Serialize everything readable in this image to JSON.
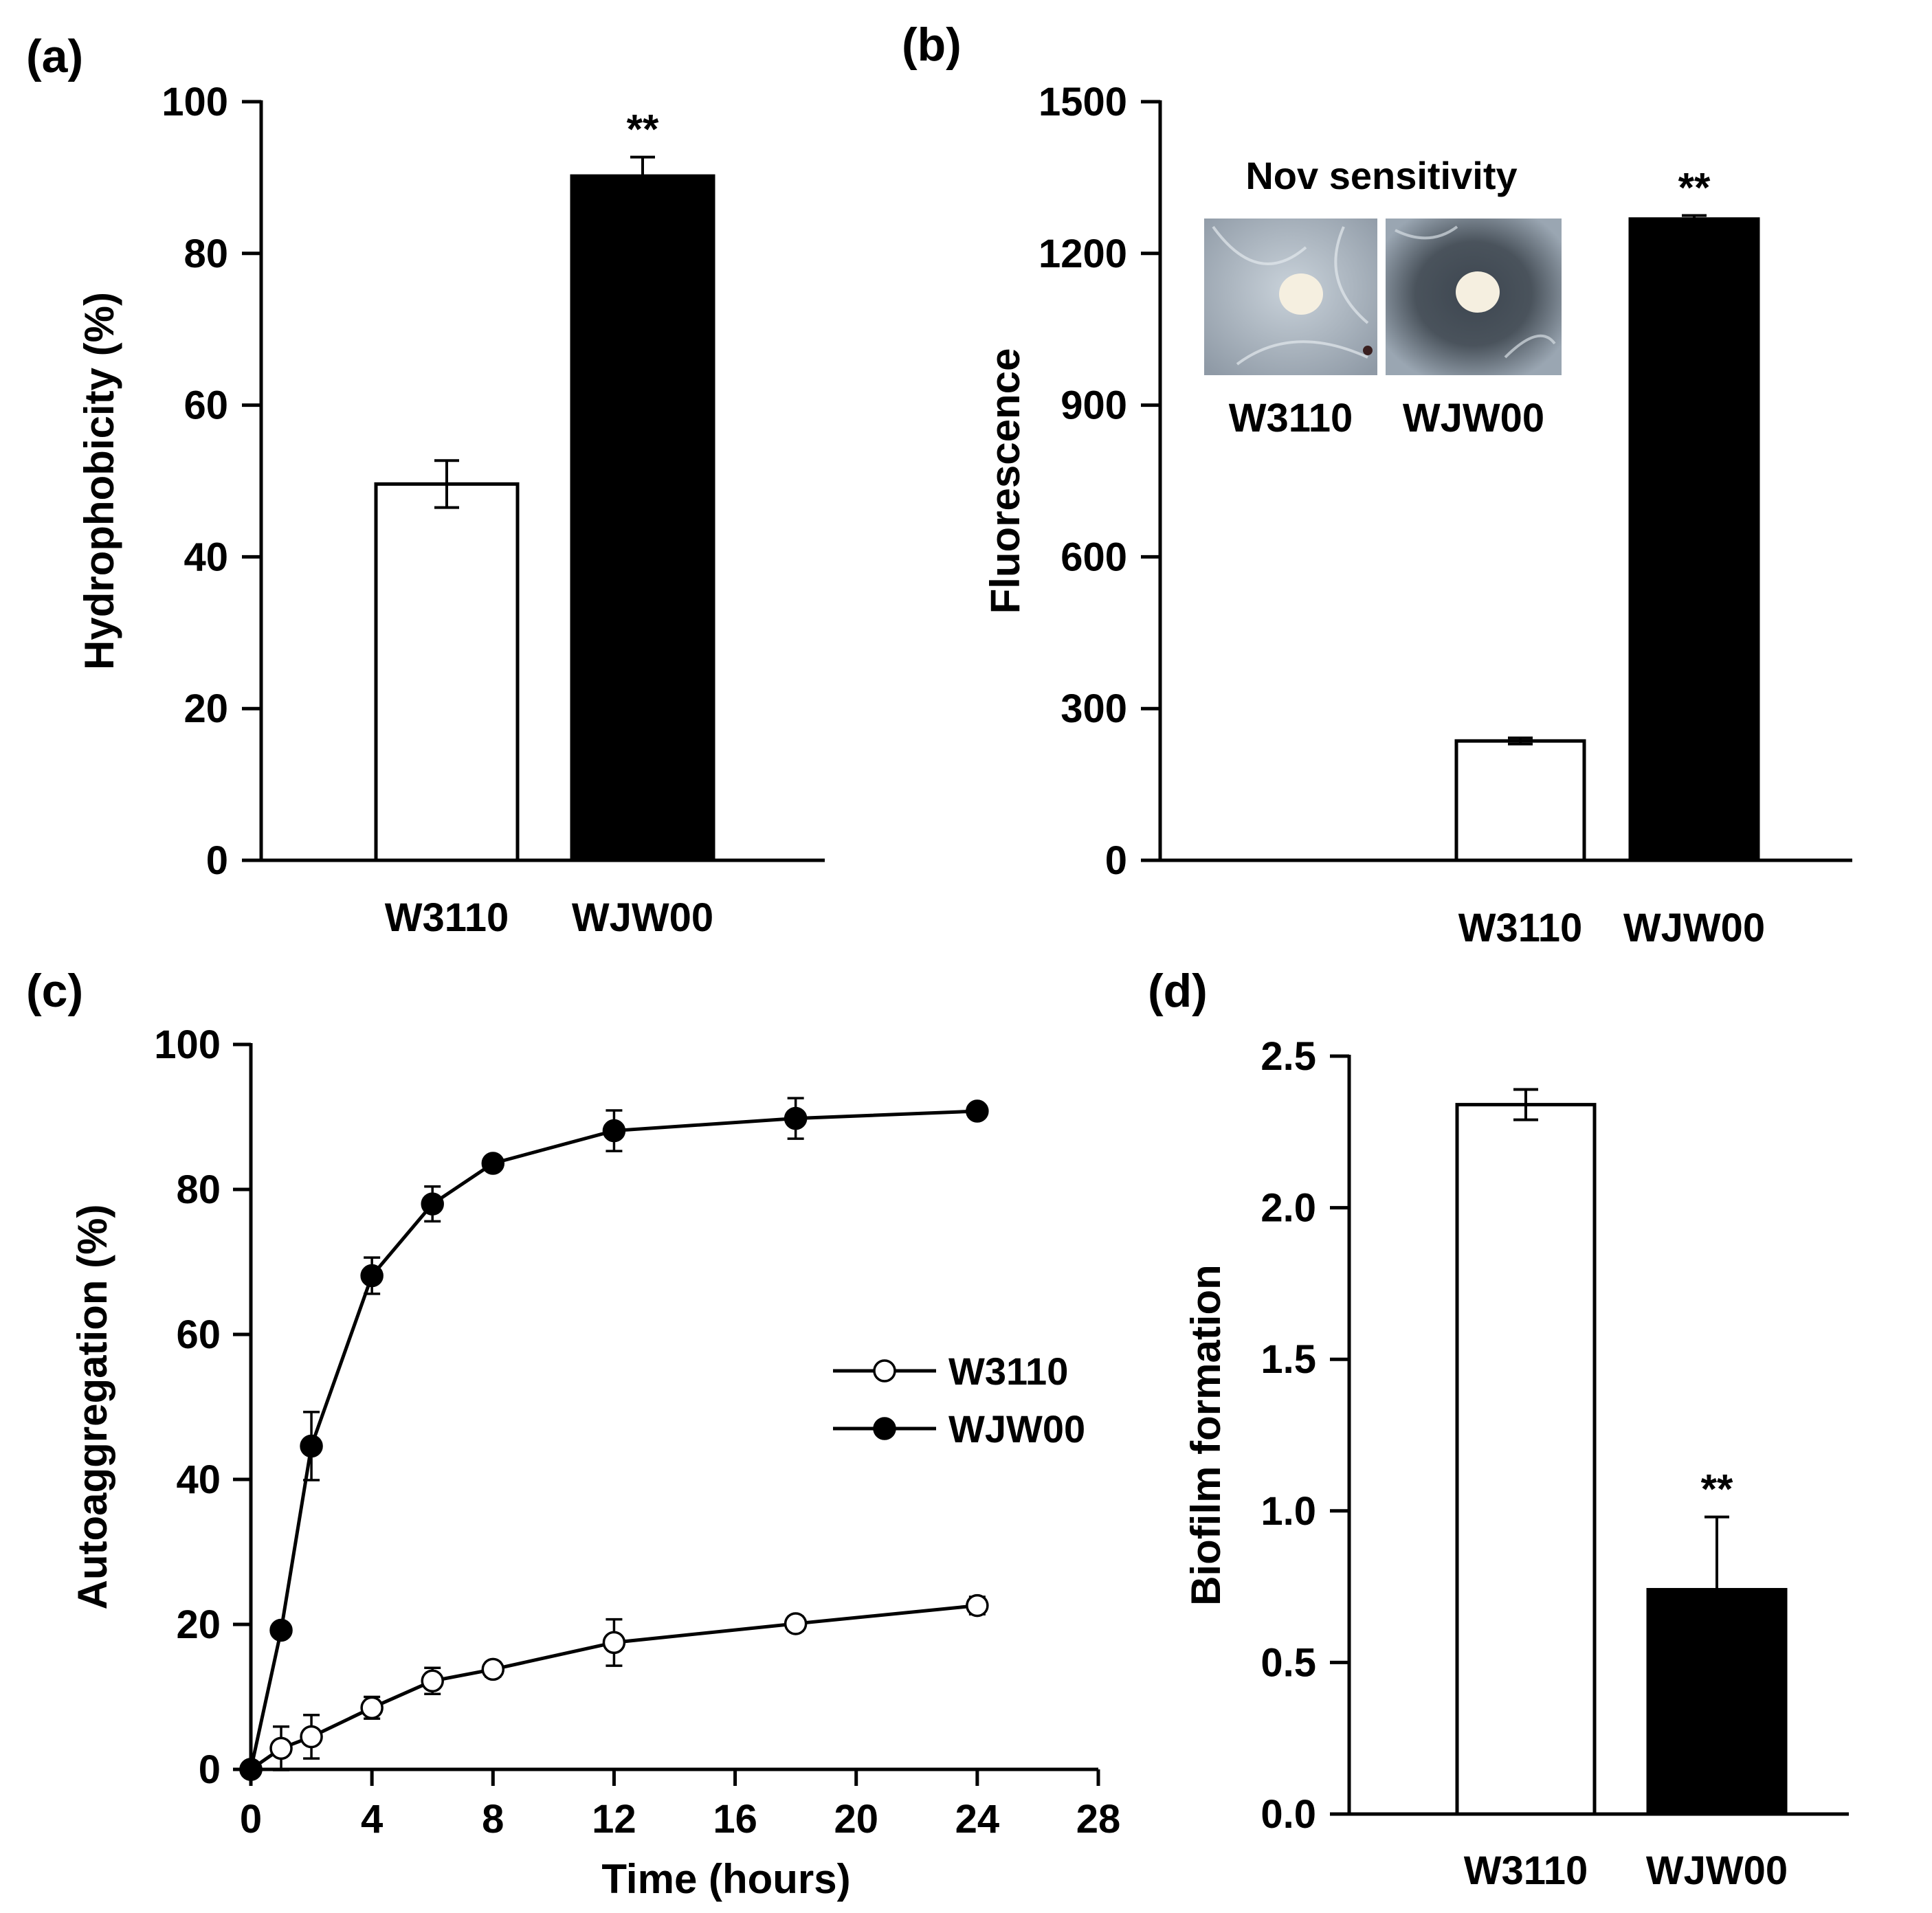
{
  "chart_data": [
    {
      "panel": "(a)",
      "type": "bar",
      "categories": [
        "W3110",
        "WJW00"
      ],
      "values": [
        49.6,
        90.2
      ],
      "errors": [
        3.1,
        2.5
      ],
      "colors": [
        "#ffffff",
        "#000000"
      ],
      "significance": [
        "",
        "**"
      ],
      "ylabel": "Hydrophobicity (%)",
      "ylim": [
        0,
        100
      ],
      "yticks": [
        "0",
        "20",
        "40",
        "60",
        "80",
        "100"
      ]
    },
    {
      "panel": "(b)",
      "type": "bar",
      "categories": [
        "W3110",
        "WJW00"
      ],
      "values": [
        236,
        1268
      ],
      "errors": [
        6,
        7
      ],
      "colors": [
        "#ffffff",
        "#000000"
      ],
      "significance": [
        "",
        "**"
      ],
      "ylabel": "Fluorescence",
      "ylim": [
        0,
        1500
      ],
      "yticks": [
        "0",
        "300",
        "600",
        "900",
        "1200",
        "1500"
      ],
      "inset": {
        "title": "Nov sensitivity",
        "labels": [
          "W3110",
          "WJW00"
        ]
      }
    },
    {
      "panel": "(c)",
      "type": "line",
      "xlabel": "Time (hours)",
      "ylabel": "Autoaggregation (%)",
      "xlim": [
        0,
        28
      ],
      "ylim": [
        0,
        100
      ],
      "xticks": [
        "0",
        "4",
        "8",
        "12",
        "16",
        "20",
        "24",
        "28"
      ],
      "yticks": [
        "0",
        "20",
        "40",
        "60",
        "80",
        "100"
      ],
      "legend_position": "center-right",
      "series": [
        {
          "name": "W3110",
          "marker": "open-circle",
          "x": [
            0,
            1,
            2,
            4,
            6,
            8,
            12,
            18,
            24
          ],
          "y": [
            0,
            2.9,
            4.5,
            8.5,
            12.2,
            13.8,
            17.5,
            20.1,
            22.6
          ],
          "err": [
            0,
            3.0,
            3.0,
            1.5,
            1.8,
            1.0,
            3.2,
            1.0,
            1.2
          ]
        },
        {
          "name": "WJW00",
          "marker": "filled-circle",
          "x": [
            0,
            1,
            2,
            4,
            6,
            8,
            12,
            18,
            24
          ],
          "y": [
            0,
            19.2,
            44.6,
            68.1,
            78.0,
            83.6,
            88.1,
            89.8,
            90.8
          ],
          "err": [
            0,
            0.8,
            4.7,
            2.5,
            2.4,
            0.8,
            2.8,
            2.8,
            0.8
          ]
        }
      ]
    },
    {
      "panel": "(d)",
      "type": "bar",
      "categories": [
        "W3110",
        "WJW00"
      ],
      "values": [
        2.34,
        0.74
      ],
      "errors": [
        0.05,
        0.24
      ],
      "colors": [
        "#ffffff",
        "#000000"
      ],
      "significance": [
        "",
        "**"
      ],
      "ylabel": "Biofilm formation",
      "ylim": [
        0,
        2.5
      ],
      "yticks": [
        "0.0",
        "0.5",
        "1.0",
        "1.5",
        "2.0",
        "2.5"
      ]
    }
  ]
}
